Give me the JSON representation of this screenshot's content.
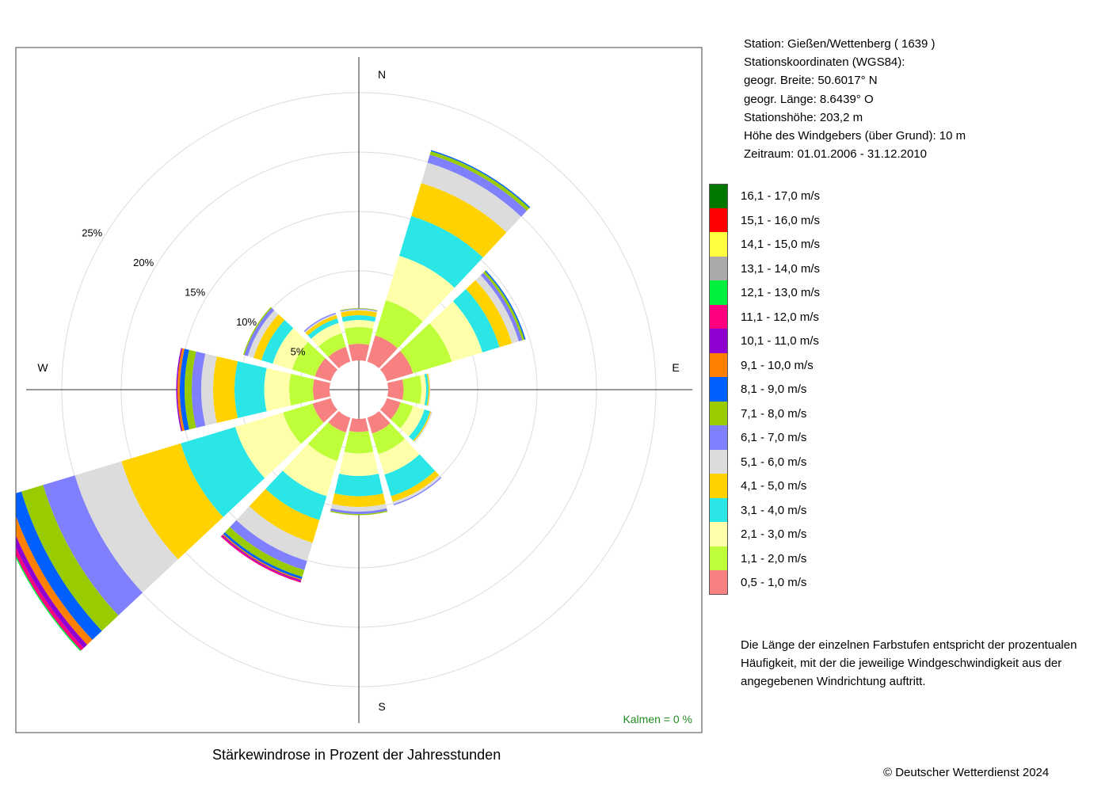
{
  "station_info": {
    "station": "Station:  Gießen/Wettenberg  ( 1639 )",
    "coords_heading": "Stationskoordinaten (WGS84):",
    "lat": "geogr. Breite: 50.6017° N",
    "lon": "geogr. Länge:   8.6439° O",
    "elevation": "Stationshöhe: 203,2 m",
    "sensor_height": "Höhe des Windgebers (über Grund): 10 m",
    "period": "Zeitraum: 01.01.2006 - 31.12.2010"
  },
  "note": "Die Länge der einzelnen Farbstufen entspricht der prozentualen Häufigkeit, mit der die jeweilige Windgeschwindigkeit aus der angegebenen Windrichtung auftritt.",
  "copyright": "© Deutscher Wetterdienst  2024",
  "chart_data": {
    "type": "wind_rose",
    "title": "Stärkewindrose in Prozent der Jahresstunden",
    "calm_label": "Kalmen  =  0 %",
    "compass_labels": [
      "N",
      "E",
      "S",
      "W"
    ],
    "radial_ticks": [
      "5%",
      "10%",
      "15%",
      "20%",
      "25%"
    ],
    "radial_tick_values": [
      5,
      10,
      15,
      20,
      25
    ],
    "radial_range": [
      0,
      25
    ],
    "grid": true,
    "speed_classes": [
      {
        "label": "0,5 - 1,0 m/s",
        "color": "#F78181"
      },
      {
        "label": "1,1 - 2,0 m/s",
        "color": "#BFFF3A"
      },
      {
        "label": "2,1 - 3,0 m/s",
        "color": "#FFFFAA"
      },
      {
        "label": "3,1 - 4,0 m/s",
        "color": "#2AE6E6"
      },
      {
        "label": "4,1 - 5,0 m/s",
        "color": "#FFD200"
      },
      {
        "label": "5,1 - 6,0 m/s",
        "color": "#DCDCDC"
      },
      {
        "label": "6,1 - 7,0 m/s",
        "color": "#8080FF"
      },
      {
        "label": "7,1 - 8,0 m/s",
        "color": "#99CC00"
      },
      {
        "label": "8,1 - 9,0 m/s",
        "color": "#0060FF"
      },
      {
        "label": "9,1 - 10,0 m/s",
        "color": "#FF8000"
      },
      {
        "label": "10,1 - 11,0 m/s",
        "color": "#9000D0"
      },
      {
        "label": "11,1 - 12,0 m/s",
        "color": "#FF0080"
      },
      {
        "label": "12,1 - 13,0 m/s",
        "color": "#00F040"
      },
      {
        "label": "13,1 - 14,0 m/s",
        "color": "#AAAAAA"
      },
      {
        "label": "14,1 - 15,0 m/s",
        "color": "#FFFF40"
      },
      {
        "label": "15,1 - 16,0 m/s",
        "color": "#FF0000"
      },
      {
        "label": "16,1 - 17,0 m/s",
        "color": "#007800"
      }
    ],
    "directions_deg": [
      0,
      30,
      60,
      90,
      120,
      150,
      180,
      210,
      240,
      270,
      300,
      330
    ],
    "cumulative_percent": [
      [
        1.4,
        2.8,
        3.4,
        3.8,
        4.2,
        4.3,
        4.35,
        4.4
      ],
      [
        2.3,
        5.4,
        9.3,
        12.8,
        15.7,
        17.5,
        18.2,
        18.5,
        18.6
      ],
      [
        2.3,
        5.7,
        8.4,
        9.9,
        11.0,
        11.6,
        11.9,
        12.1,
        12.2
      ],
      [
        1.3,
        2.8,
        3.2,
        3.4,
        3.5,
        3.55
      ],
      [
        1.2,
        2.3,
        3.3,
        3.8,
        3.9,
        4.0
      ],
      [
        1.4,
        3.2,
        5.0,
        6.9,
        7.4,
        7.6,
        7.7
      ],
      [
        1.1,
        2.9,
        4.8,
        6.5,
        7.4,
        7.8,
        8.0,
        8.1
      ],
      [
        1.3,
        3.8,
        6.9,
        9.0,
        11.0,
        12.6,
        13.4,
        14.0,
        14.2,
        14.3,
        14.4,
        14.5
      ],
      [
        1.6,
        4.2,
        8.4,
        13.2,
        18.4,
        22.5,
        25.3,
        27.2,
        28.3,
        28.9,
        29.3,
        29.6,
        29.7
      ],
      [
        1.4,
        3.4,
        5.5,
        8.0,
        9.8,
        10.8,
        11.6,
        12.2,
        12.6,
        12.8,
        12.9
      ],
      [
        1.4,
        3.4,
        5.1,
        6.1,
        6.8,
        7.3,
        7.6,
        7.7
      ],
      [
        1.3,
        2.5,
        3.4,
        3.8,
        4.1,
        4.2,
        4.3
      ]
    ]
  }
}
